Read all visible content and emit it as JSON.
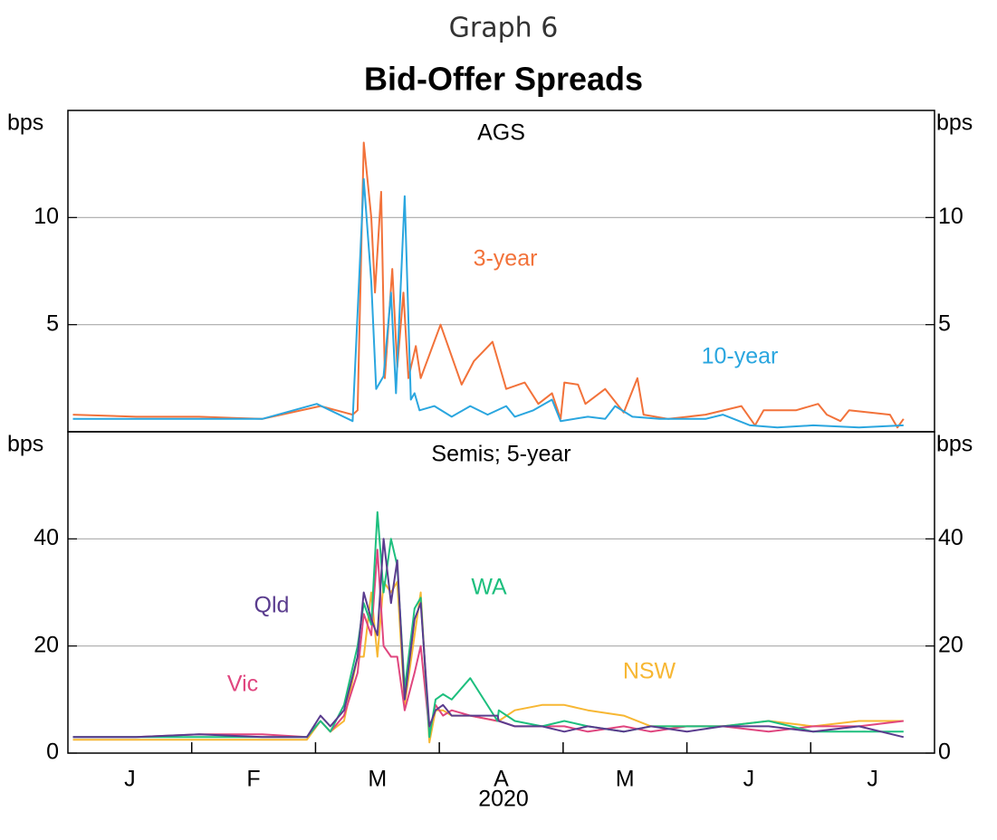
{
  "graph_number": "Graph 6",
  "title": "Bid-Offer Spreads",
  "x_axis": {
    "xlim": [
      0,
      7
    ],
    "label": "2020",
    "xticks": [
      {
        "value": 0.5,
        "label": "J"
      },
      {
        "value": 1.5,
        "label": "F"
      },
      {
        "value": 2.5,
        "label": "M"
      },
      {
        "value": 3.5,
        "label": "A"
      },
      {
        "value": 4.5,
        "label": "M"
      },
      {
        "value": 5.5,
        "label": "J"
      },
      {
        "value": 6.5,
        "label": "J"
      }
    ],
    "month_boundaries": [
      1,
      2,
      3,
      4,
      5,
      6
    ]
  },
  "chart_data": [
    {
      "type": "line",
      "subtitle": "AGS",
      "ylabel": "bps",
      "ylim": [
        0,
        15
      ],
      "yticks": [
        5,
        10
      ],
      "grid": true,
      "series": [
        {
          "name": "3-year",
          "color": "#f2723a",
          "x": [
            0.04,
            0.55,
            1.06,
            1.57,
            2.04,
            2.3,
            2.34,
            2.39,
            2.45,
            2.48,
            2.53,
            2.56,
            2.62,
            2.66,
            2.71,
            2.75,
            2.81,
            2.85,
            3.01,
            3.18,
            3.28,
            3.43,
            3.54,
            3.69,
            3.8,
            3.91,
            3.98,
            4.01,
            4.12,
            4.18,
            4.34,
            4.49,
            4.6,
            4.65,
            4.85,
            5.15,
            5.44,
            5.55,
            5.62,
            5.88,
            6.06,
            6.13,
            6.24,
            6.31,
            6.64,
            6.7,
            6.75
          ],
          "values": [
            0.8,
            0.7,
            0.7,
            0.6,
            1.2,
            0.8,
            1.0,
            13.5,
            10,
            6.5,
            11.2,
            2.5,
            7.6,
            3,
            6.5,
            2.5,
            4,
            2.5,
            5,
            2.2,
            3.3,
            4.2,
            2.0,
            2.3,
            1.3,
            1.8,
            0.6,
            2.3,
            2.2,
            1.3,
            2.0,
            0.9,
            2.5,
            0.8,
            0.6,
            0.8,
            1.2,
            0.3,
            1.0,
            1.0,
            1.3,
            0.8,
            0.5,
            1.0,
            0.8,
            0.2,
            0.6
          ]
        },
        {
          "name": "10-year",
          "color": "#2aa6df",
          "x": [
            0.04,
            0.55,
            1.06,
            1.57,
            2.01,
            2.3,
            2.39,
            2.45,
            2.49,
            2.55,
            2.61,
            2.65,
            2.72,
            2.77,
            2.8,
            2.84,
            2.96,
            3.1,
            3.25,
            3.39,
            3.54,
            3.61,
            3.76,
            3.91,
            3.98,
            4.2,
            4.34,
            4.42,
            4.56,
            4.78,
            5.15,
            5.29,
            5.51,
            5.73,
            6.02,
            6.39,
            6.75
          ],
          "values": [
            0.6,
            0.6,
            0.6,
            0.6,
            1.3,
            0.5,
            11.8,
            7,
            2,
            2.6,
            6.5,
            1.8,
            11,
            1.5,
            1.8,
            1.0,
            1.2,
            0.7,
            1.2,
            0.8,
            1.2,
            0.7,
            1.0,
            1.5,
            0.5,
            0.7,
            0.6,
            1.2,
            0.7,
            0.6,
            0.6,
            0.8,
            0.3,
            0.2,
            0.3,
            0.2,
            0.3
          ]
        }
      ]
    },
    {
      "type": "line",
      "subtitle": "Semis; 5-year",
      "ylabel": "bps",
      "ylim": [
        0,
        60
      ],
      "yticks": [
        0,
        20,
        40
      ],
      "grid": true,
      "x": [
        0.04,
        0.55,
        1.06,
        1.57,
        1.93,
        2.04,
        2.12,
        2.23,
        2.34,
        2.39,
        2.45,
        2.5,
        2.55,
        2.61,
        2.66,
        2.72,
        2.8,
        2.85,
        2.92,
        2.97,
        3.03,
        3.1,
        3.25,
        3.47,
        3.48,
        3.61,
        3.83,
        4.01,
        4.2,
        4.49,
        4.71,
        5.0,
        5.29,
        5.66,
        6.02,
        6.39,
        6.75
      ],
      "series": [
        {
          "name": "NSW",
          "color": "#f7b733",
          "values": [
            2.5,
            2.5,
            2.5,
            2.5,
            2.5,
            6,
            4,
            6,
            18,
            18,
            30,
            18,
            32,
            30,
            32,
            9,
            22,
            30,
            2,
            8,
            8,
            7,
            7,
            6,
            6,
            8,
            9,
            9,
            8,
            7,
            5,
            5,
            5,
            6,
            5,
            6,
            6
          ]
        },
        {
          "name": "Vic",
          "color": "#e0467f",
          "values": [
            3,
            3,
            3.5,
            3.5,
            3,
            6,
            4,
            7,
            15,
            26,
            22,
            38,
            20,
            18,
            18,
            8,
            15,
            20,
            4,
            9,
            7,
            8,
            7,
            6,
            6,
            5,
            5,
            5,
            4,
            5,
            4,
            5,
            5,
            4,
            5,
            5,
            6
          ]
        },
        {
          "name": "WA",
          "color": "#1dbf7e",
          "values": [
            3,
            3,
            3,
            3,
            3,
            6,
            4,
            9,
            20,
            28,
            24,
            45,
            30,
            40,
            35,
            12,
            27,
            29,
            3,
            10,
            11,
            10,
            14,
            6,
            8,
            6,
            5,
            6,
            5,
            4,
            5,
            5,
            5,
            6,
            4,
            4,
            4
          ]
        },
        {
          "name": "Qld",
          "color": "#5a3c8e",
          "values": [
            3,
            3,
            3.5,
            3,
            3,
            7,
            5,
            8,
            18,
            30,
            25,
            22,
            40,
            28,
            36,
            10,
            25,
            28,
            5,
            8,
            9,
            7,
            7,
            7,
            6,
            5,
            5,
            4,
            5,
            4,
            5,
            4,
            5,
            5,
            4,
            5,
            3
          ]
        }
      ]
    }
  ]
}
